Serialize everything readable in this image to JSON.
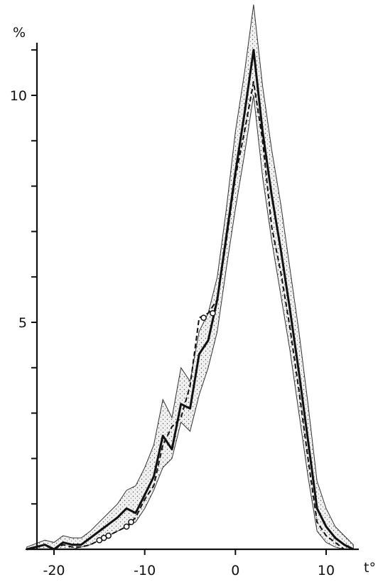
{
  "chart_data": {
    "type": "line",
    "title": "",
    "xlabel": "t°",
    "ylabel": "%",
    "xlim": [
      -23.5,
      15
    ],
    "ylim": [
      0,
      12
    ],
    "x_ticks": [
      -20,
      -10,
      0,
      10
    ],
    "x_tick_labels": [
      "-20",
      "-10",
      "0",
      "10"
    ],
    "y_ticks": [
      1,
      2,
      3,
      4,
      5,
      6,
      7,
      8,
      9,
      10,
      11
    ],
    "y_tick_labels": [
      "",
      "",
      "",
      "",
      "5",
      "",
      "",
      "",
      "",
      "10",
      ""
    ],
    "grid": false,
    "band": {
      "x": [
        -23,
        -21,
        -20,
        -19,
        -18,
        -17,
        -16,
        -15,
        -14,
        -13,
        -12,
        -11,
        -10,
        -9,
        -8,
        -7,
        -6,
        -5,
        -4,
        -3,
        -2,
        -1,
        0,
        1,
        2,
        3,
        4,
        5,
        6,
        7,
        8,
        9,
        10,
        11,
        12,
        13
      ],
      "upper": [
        0.05,
        0.2,
        0.15,
        0.3,
        0.25,
        0.25,
        0.4,
        0.6,
        0.8,
        1.0,
        1.3,
        1.4,
        1.8,
        2.3,
        3.3,
        2.9,
        4.0,
        3.7,
        4.8,
        5.2,
        6.0,
        7.5,
        9.2,
        10.5,
        12.0,
        10.2,
        8.8,
        7.6,
        6.2,
        4.8,
        3.2,
        1.5,
        0.9,
        0.5,
        0.3,
        0.1
      ],
      "lower": [
        0.0,
        0.0,
        0.0,
        0.0,
        0.0,
        0.05,
        0.1,
        0.2,
        0.3,
        0.4,
        0.5,
        0.6,
        0.9,
        1.3,
        1.8,
        2.0,
        2.8,
        2.6,
        3.4,
        4.0,
        4.8,
        6.2,
        7.5,
        8.7,
        10.0,
        8.2,
        6.8,
        5.6,
        4.4,
        3.0,
        1.6,
        0.4,
        0.15,
        0.05,
        0.0,
        0.0
      ]
    },
    "series": [
      {
        "style": "solid",
        "x": [
          -23,
          -21,
          -20,
          -19,
          -18,
          -17,
          -16,
          -15,
          -14,
          -13,
          -12,
          -11,
          -10,
          -9,
          -8,
          -7,
          -6,
          -5,
          -4,
          -3,
          -2,
          -1,
          0,
          1,
          2,
          3,
          4,
          5,
          6,
          7,
          8,
          9,
          10,
          11,
          12,
          13
        ],
        "y": [
          0.0,
          0.1,
          0.0,
          0.15,
          0.1,
          0.1,
          0.25,
          0.4,
          0.55,
          0.7,
          0.9,
          0.8,
          1.2,
          1.6,
          2.5,
          2.2,
          3.2,
          3.1,
          4.3,
          4.6,
          5.5,
          6.9,
          8.3,
          9.6,
          11.0,
          9.2,
          7.8,
          6.6,
          5.3,
          3.9,
          2.4,
          0.9,
          0.5,
          0.25,
          0.1,
          0.0
        ]
      },
      {
        "style": "dashed",
        "x": [
          -20,
          -19,
          -18,
          -17,
          -16,
          -15,
          -14,
          -13,
          -12,
          -11,
          -10,
          -9,
          -8,
          -7,
          -6,
          -5,
          -4,
          -3,
          -2,
          -1,
          0,
          1,
          2,
          3,
          4,
          5,
          6,
          7,
          8,
          9,
          10,
          11,
          12
        ],
        "y": [
          0.0,
          0.1,
          0.05,
          0.05,
          0.1,
          0.2,
          0.3,
          0.4,
          0.5,
          0.7,
          1.1,
          1.4,
          2.3,
          2.7,
          2.9,
          3.6,
          5.1,
          5.2,
          5.5,
          6.8,
          8.2,
          9.2,
          10.3,
          9.0,
          7.1,
          6.1,
          4.9,
          3.5,
          2.0,
          0.6,
          0.3,
          0.15,
          0.0
        ]
      }
    ],
    "markers": {
      "x": [
        -15,
        -14.5,
        -14,
        -12,
        -11.5,
        -3.5,
        -2.5
      ],
      "y": [
        0.2,
        0.25,
        0.3,
        0.5,
        0.6,
        5.1,
        5.2
      ]
    }
  }
}
